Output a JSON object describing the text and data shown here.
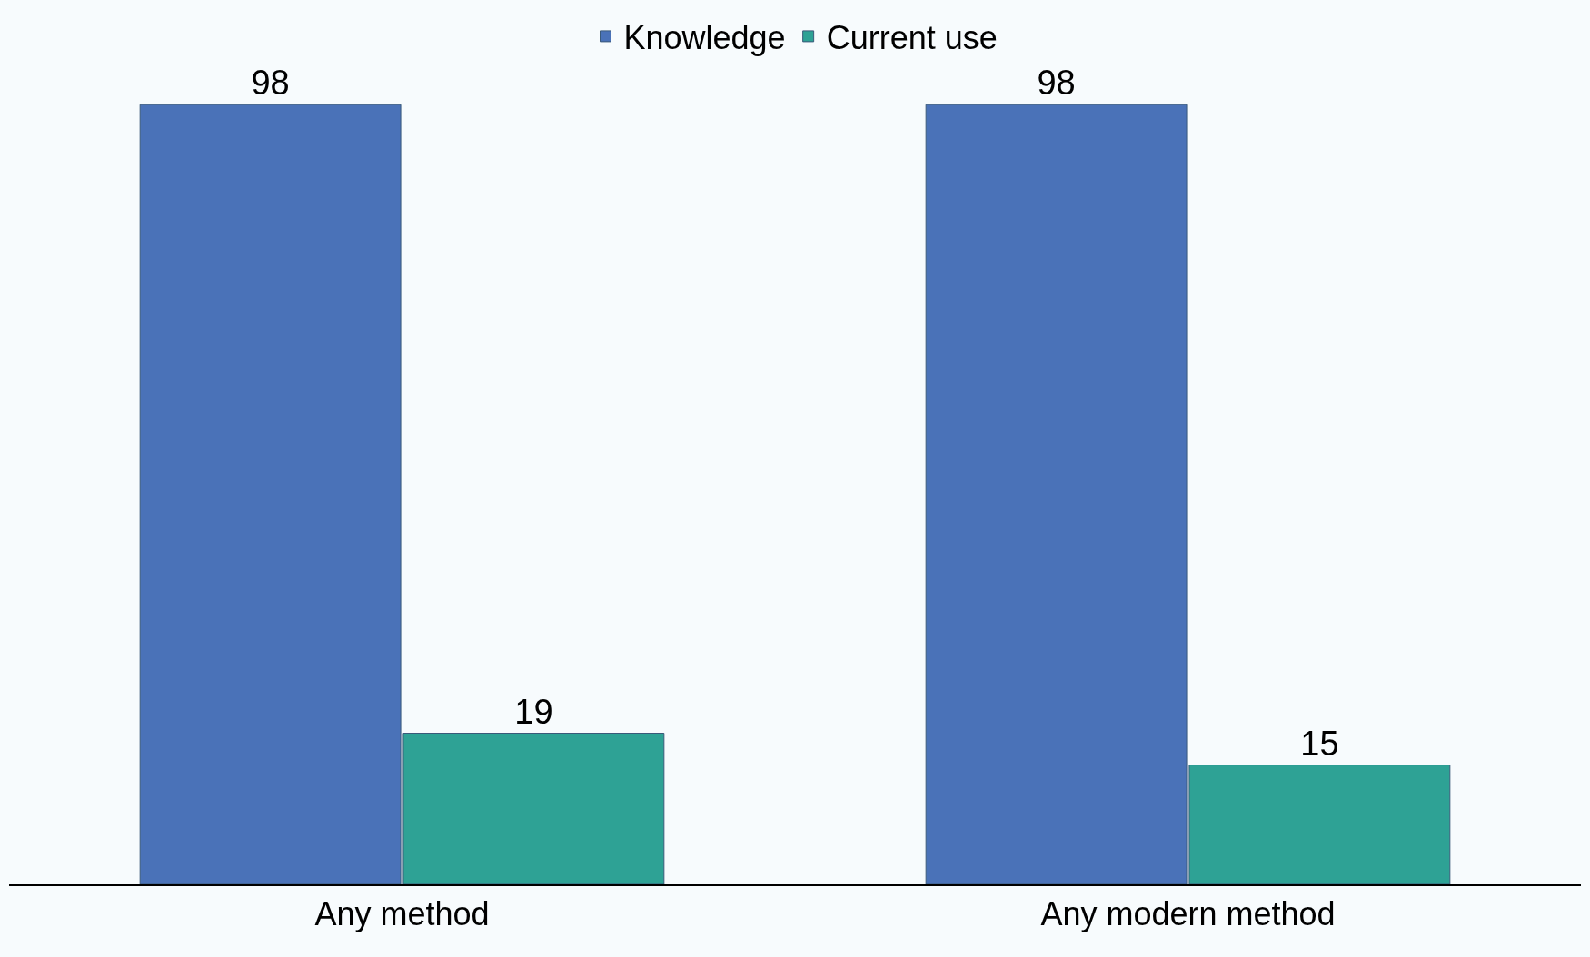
{
  "chart_data": {
    "type": "bar",
    "categories": [
      "Any method",
      "Any modern method"
    ],
    "series": [
      {
        "name": "Knowledge",
        "color": "#4a72b8",
        "values": [
          98,
          98
        ]
      },
      {
        "name": "Current use",
        "color": "#2ea295",
        "values": [
          19,
          15
        ]
      }
    ],
    "data_labels": true,
    "legend": "top",
    "grid": false
  }
}
